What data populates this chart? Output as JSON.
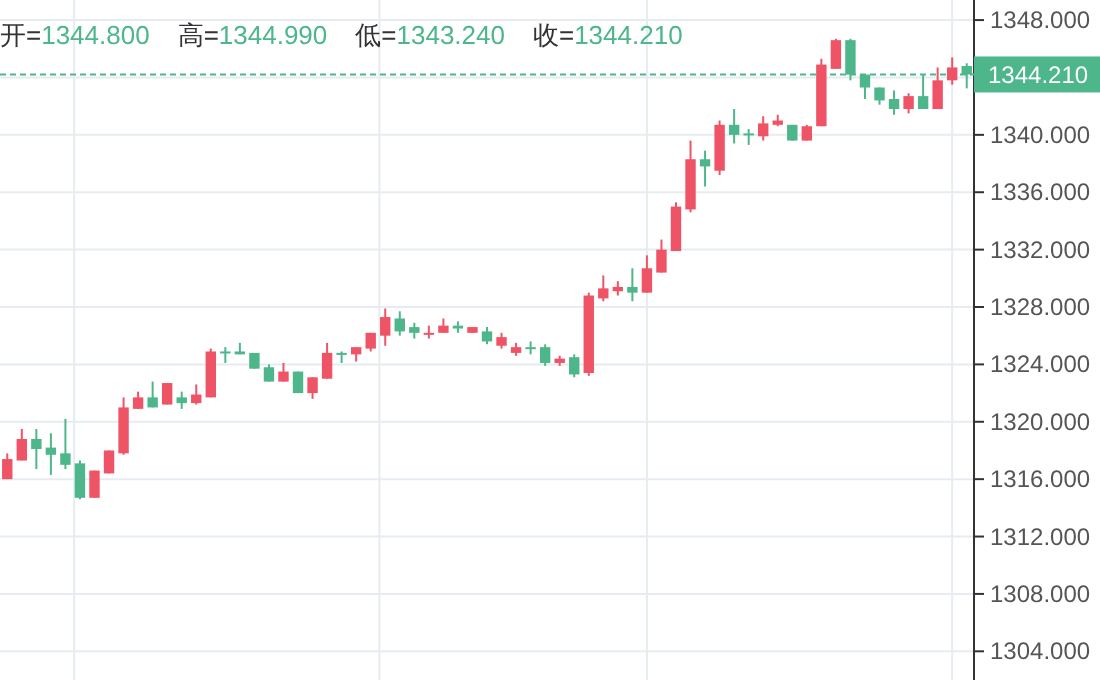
{
  "chart_data": {
    "type": "candlestick",
    "categories": [
      null,
      null,
      null,
      null,
      null,
      null,
      null,
      null,
      null,
      null,
      null,
      null,
      null,
      null,
      null,
      null,
      null,
      null,
      null,
      null,
      null,
      null,
      null,
      null,
      null,
      null,
      null,
      null,
      null,
      null,
      null,
      null,
      null,
      null,
      null,
      null,
      null,
      null,
      null,
      null,
      null,
      null,
      null,
      null,
      null,
      null,
      null,
      null,
      null,
      null,
      null,
      null,
      null,
      null,
      null,
      null,
      null,
      null,
      null,
      null,
      null,
      null,
      null,
      null,
      null,
      null,
      null
    ],
    "ohlc": [
      [
        1316.0,
        1317.8,
        1316.0,
        1317.4
      ],
      [
        1317.3,
        1319.5,
        1317.3,
        1318.8
      ],
      [
        1318.8,
        1319.5,
        1316.7,
        1318.1
      ],
      [
        1318.2,
        1319.2,
        1316.3,
        1317.7
      ],
      [
        1317.8,
        1320.2,
        1316.7,
        1317.0
      ],
      [
        1317.1,
        1317.3,
        1314.6,
        1314.7
      ],
      [
        1314.7,
        1316.6,
        1314.7,
        1316.6
      ],
      [
        1316.4,
        1318.0,
        1316.4,
        1318.0
      ],
      [
        1317.8,
        1321.7,
        1317.7,
        1321.0
      ],
      [
        1320.9,
        1322.1,
        1320.9,
        1321.7
      ],
      [
        1321.7,
        1322.8,
        1321.0,
        1321.0
      ],
      [
        1321.2,
        1322.7,
        1321.2,
        1322.7
      ],
      [
        1321.7,
        1322.1,
        1320.9,
        1321.3
      ],
      [
        1321.3,
        1322.6,
        1321.2,
        1321.9
      ],
      [
        1321.7,
        1325.1,
        1321.7,
        1324.9
      ],
      [
        1324.9,
        1325.2,
        1324.1,
        1324.8
      ],
      [
        1324.9,
        1325.5,
        1324.7,
        1324.7
      ],
      [
        1324.8,
        1324.8,
        1323.7,
        1323.7
      ],
      [
        1323.8,
        1324.0,
        1322.8,
        1322.8
      ],
      [
        1322.8,
        1324.1,
        1322.8,
        1323.5
      ],
      [
        1323.5,
        1323.5,
        1322.0,
        1322.0
      ],
      [
        1322.0,
        1323.1,
        1321.6,
        1323.1
      ],
      [
        1323.0,
        1325.5,
        1323.0,
        1324.8
      ],
      [
        1324.8,
        1324.9,
        1324.1,
        1324.7
      ],
      [
        1324.7,
        1325.2,
        1324.2,
        1325.2
      ],
      [
        1325.1,
        1326.2,
        1324.9,
        1326.2
      ],
      [
        1326.0,
        1327.9,
        1325.3,
        1327.3
      ],
      [
        1327.2,
        1327.7,
        1326.0,
        1326.3
      ],
      [
        1326.6,
        1326.9,
        1325.8,
        1326.2
      ],
      [
        1326.1,
        1326.7,
        1325.8,
        1326.2
      ],
      [
        1326.2,
        1327.2,
        1326.2,
        1326.7
      ],
      [
        1326.7,
        1327.0,
        1326.2,
        1326.5
      ],
      [
        1326.2,
        1326.6,
        1326.2,
        1326.6
      ],
      [
        1326.3,
        1326.6,
        1325.4,
        1325.6
      ],
      [
        1325.3,
        1326.2,
        1325.1,
        1325.9
      ],
      [
        1324.8,
        1325.5,
        1324.6,
        1325.2
      ],
      [
        1325.2,
        1325.6,
        1324.7,
        1325.1
      ],
      [
        1325.2,
        1325.4,
        1323.9,
        1324.1
      ],
      [
        1324.1,
        1324.6,
        1323.9,
        1324.4
      ],
      [
        1324.5,
        1324.7,
        1323.1,
        1323.3
      ],
      [
        1323.4,
        1329.0,
        1323.2,
        1328.8
      ],
      [
        1328.6,
        1330.2,
        1328.4,
        1329.3
      ],
      [
        1329.1,
        1329.8,
        1328.8,
        1329.4
      ],
      [
        1329.4,
        1330.7,
        1328.4,
        1329.0
      ],
      [
        1329.0,
        1331.6,
        1329.0,
        1330.7
      ],
      [
        1330.4,
        1332.7,
        1330.4,
        1332.0
      ],
      [
        1331.9,
        1335.3,
        1331.9,
        1335.0
      ],
      [
        1334.8,
        1339.6,
        1334.6,
        1338.3
      ],
      [
        1338.3,
        1338.9,
        1336.4,
        1337.8
      ],
      [
        1337.5,
        1341.0,
        1337.2,
        1340.7
      ],
      [
        1340.7,
        1341.8,
        1339.4,
        1340.0
      ],
      [
        1340.1,
        1340.4,
        1339.3,
        1340.0
      ],
      [
        1339.9,
        1341.3,
        1339.6,
        1340.8
      ],
      [
        1340.7,
        1341.4,
        1340.6,
        1341.0
      ],
      [
        1340.7,
        1340.7,
        1339.6,
        1339.6
      ],
      [
        1339.6,
        1340.7,
        1339.6,
        1340.6
      ],
      [
        1340.6,
        1345.3,
        1340.6,
        1344.9
      ],
      [
        1344.6,
        1346.7,
        1344.6,
        1346.6
      ],
      [
        1346.6,
        1346.7,
        1343.8,
        1344.2
      ],
      [
        1344.2,
        1344.2,
        1342.5,
        1343.3
      ],
      [
        1343.3,
        1343.3,
        1342.1,
        1342.4
      ],
      [
        1342.5,
        1343.1,
        1341.4,
        1341.8
      ],
      [
        1341.8,
        1342.9,
        1341.5,
        1342.7
      ],
      [
        1342.7,
        1344.2,
        1341.8,
        1341.8
      ],
      [
        1341.8,
        1344.7,
        1341.8,
        1343.8
      ],
      [
        1343.8,
        1345.4,
        1343.5,
        1344.7
      ],
      [
        1344.8,
        1344.99,
        1343.24,
        1344.21
      ]
    ],
    "colors": [
      "#ef5466",
      "#ef5466",
      "#4db68a",
      "#4db68a",
      "#4db68a",
      "#4db68a",
      "#ef5466",
      "#ef5466",
      "#ef5466",
      "#ef5466",
      "#4db68a",
      "#ef5466",
      "#4db68a",
      "#ef5466",
      "#ef5466",
      "#4db68a",
      "#4db68a",
      "#4db68a",
      "#4db68a",
      "#ef5466",
      "#4db68a",
      "#ef5466",
      "#ef5466",
      "#4db68a",
      "#ef5466",
      "#ef5466",
      "#ef5466",
      "#4db68a",
      "#4db68a",
      "#ef5466",
      "#ef5466",
      "#4db68a",
      "#ef5466",
      "#4db68a",
      "#ef5466",
      "#ef5466",
      "#4db68a",
      "#4db68a",
      "#ef5466",
      "#4db68a",
      "#ef5466",
      "#ef5466",
      "#ef5466",
      "#4db68a",
      "#ef5466",
      "#ef5466",
      "#ef5466",
      "#ef5466",
      "#4db68a",
      "#ef5466",
      "#4db68a",
      "#4db68a",
      "#ef5466",
      "#ef5466",
      "#4db68a",
      "#ef5466",
      "#ef5466",
      "#ef5466",
      "#4db68a",
      "#4db68a",
      "#4db68a",
      "#4db68a",
      "#ef5466",
      "#4db68a",
      "#ef5466",
      "#ef5466",
      "#4db68a"
    ],
    "ylim": [
      1302,
      1349.4
    ],
    "yticks": [
      {
        "value": 1304,
        "label": "1304.000"
      },
      {
        "value": 1308,
        "label": "1308.000"
      },
      {
        "value": 1312,
        "label": "1312.000"
      },
      {
        "value": 1316,
        "label": "1316.000"
      },
      {
        "value": 1320,
        "label": "1320.000"
      },
      {
        "value": 1324,
        "label": "1324.000"
      },
      {
        "value": 1328,
        "label": "1328.000"
      },
      {
        "value": 1332,
        "label": "1332.000"
      },
      {
        "value": 1336,
        "label": "1336.000"
      },
      {
        "value": 1340,
        "label": "1340.000"
      },
      {
        "value": 1344,
        "label": null
      },
      {
        "value": 1348,
        "label": "1348.000"
      }
    ],
    "ref_lines": [
      {
        "axis": "y",
        "value": 1344.21,
        "label": "1344.210",
        "color": "#4db68a",
        "line_style": "dashed"
      }
    ],
    "annotations": [
      "开=1344.800",
      "高=1344.990",
      "低=1343.240",
      "收=1344.210"
    ],
    "grid": true,
    "tick_labels": "y"
  }
}
